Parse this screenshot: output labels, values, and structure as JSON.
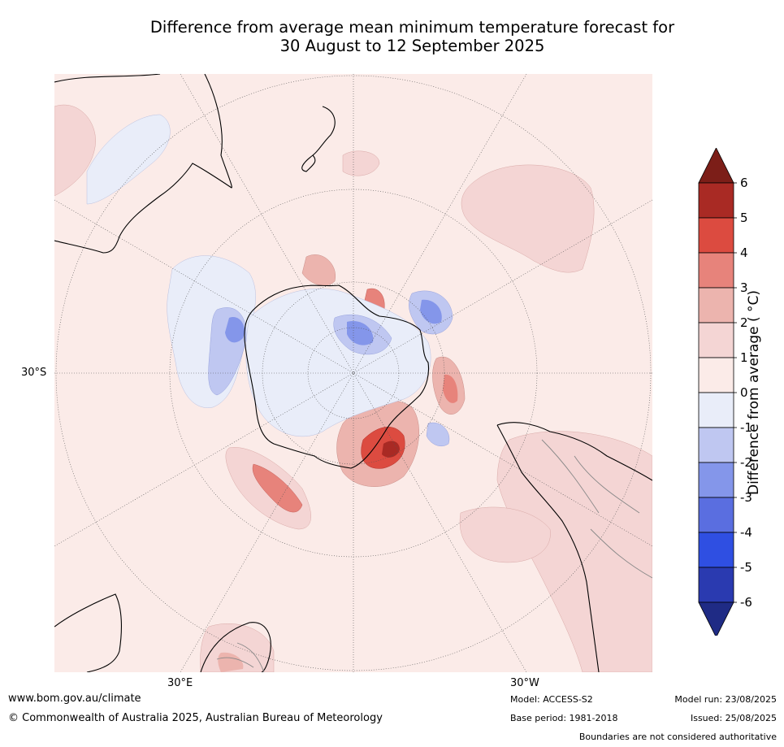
{
  "title": {
    "line1": "Difference from average mean minimum temperature forecast for",
    "line2": "30 August to 12 September 2025"
  },
  "map": {
    "labels": {
      "lat_30s": "30°S",
      "lon_30e": "30°E",
      "lon_30w": "30°W"
    },
    "colors": {
      "ocean_background": "#fbebe8",
      "warm_1_2": "#f4d5d4",
      "warm_2_3": "#ecb4ae",
      "warm_3_4": "#e7837b",
      "warm_4_5": "#dc4b40",
      "warm_5_6": "#b22d26",
      "cool_0_-1": "#e9edf9",
      "cool_-1_-2": "#bfc7f1",
      "cool_-2_-3": "#8496ea",
      "coastline": "#000000",
      "graticule": "#555555"
    }
  },
  "colorbar": {
    "title": "Difference from average ( °C)",
    "ticks": [
      "6",
      "5",
      "4",
      "3",
      "2",
      "1",
      "0",
      "-1",
      "-2",
      "-3",
      "-4",
      "-5",
      "-6"
    ],
    "colors": [
      "#a92a24",
      "#dc4b40",
      "#e7837b",
      "#ecb4ae",
      "#f4d5d4",
      "#fbebe8",
      "#e9edf9",
      "#bfc7f1",
      "#8496ea",
      "#5a6ee0",
      "#2f4fe2",
      "#2a3ab0"
    ],
    "top_arrow_color": "#7c1e18",
    "bottom_arrow_color": "#1f2b85"
  },
  "footer": {
    "website": "www.bom.gov.au/climate",
    "copyright": "© Commonwealth of Australia 2025, Australian Bureau of Meteorology",
    "model": "Model: ACCESS-S2",
    "base_period": "Base period: 1981-2018",
    "model_run": "Model run: 23/08/2025",
    "issued": "Issued: 25/08/2025",
    "disclaimer": "Boundaries are not considered authoritative"
  }
}
